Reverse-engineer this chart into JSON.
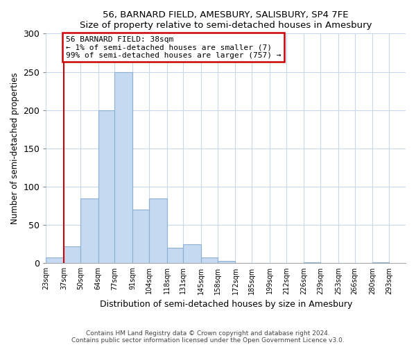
{
  "title": "56, BARNARD FIELD, AMESBURY, SALISBURY, SP4 7FE",
  "subtitle": "Size of property relative to semi-detached houses in Amesbury",
  "xlabel": "Distribution of semi-detached houses by size in Amesbury",
  "ylabel": "Number of semi-detached properties",
  "footer_line1": "Contains HM Land Registry data © Crown copyright and database right 2024.",
  "footer_line2": "Contains public sector information licensed under the Open Government Licence v3.0.",
  "annotation_line1": "56 BARNARD FIELD: 38sqm",
  "annotation_line2": "← 1% of semi-detached houses are smaller (7)",
  "annotation_line3": "99% of semi-detached houses are larger (757) →",
  "bar_color": "#c5d9f0",
  "bar_edge_color": "#8ab0d4",
  "highlight_color": "#cc0000",
  "bar_left_edges": [
    23,
    37,
    50,
    64,
    77,
    91,
    104,
    118,
    131,
    145,
    158,
    172,
    185,
    199,
    212,
    226,
    239,
    253,
    266,
    280
  ],
  "bar_widths": [
    14,
    13,
    14,
    13,
    14,
    13,
    14,
    13,
    14,
    13,
    14,
    13,
    14,
    13,
    13,
    13,
    14,
    13,
    14,
    13
  ],
  "bar_heights": [
    8,
    22,
    85,
    200,
    250,
    70,
    85,
    20,
    25,
    8,
    3,
    0,
    0,
    0,
    0,
    1,
    0,
    0,
    0,
    1
  ],
  "x_tick_labels": [
    "23sqm",
    "37sqm",
    "50sqm",
    "64sqm",
    "77sqm",
    "91sqm",
    "104sqm",
    "118sqm",
    "131sqm",
    "145sqm",
    "158sqm",
    "172sqm",
    "185sqm",
    "199sqm",
    "212sqm",
    "226sqm",
    "239sqm",
    "253sqm",
    "266sqm",
    "280sqm",
    "293sqm"
  ],
  "x_tick_positions": [
    23,
    37,
    50,
    64,
    77,
    91,
    104,
    118,
    131,
    145,
    158,
    172,
    185,
    199,
    212,
    226,
    239,
    253,
    266,
    280,
    293
  ],
  "ylim": [
    0,
    300
  ],
  "xlim": [
    23,
    306
  ],
  "property_x": 37,
  "yticks": [
    0,
    50,
    100,
    150,
    200,
    250,
    300
  ],
  "figsize": [
    6.0,
    5.0
  ],
  "dpi": 100
}
